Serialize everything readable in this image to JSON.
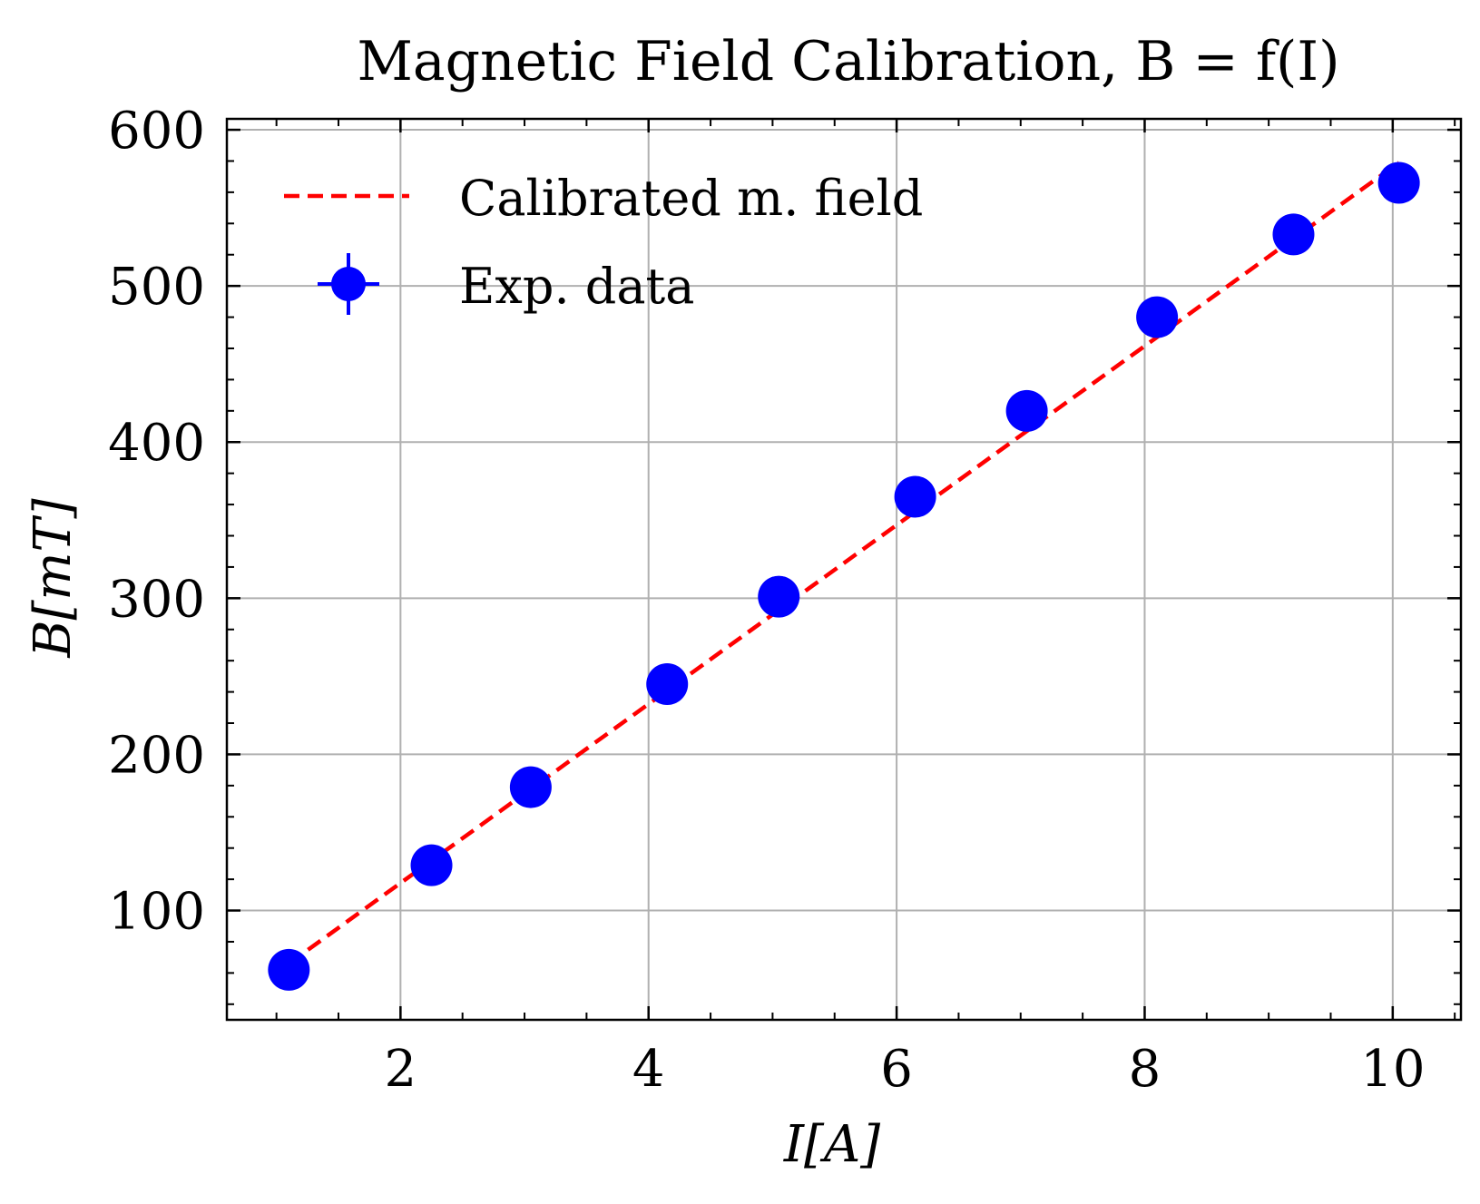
{
  "chart_data": {
    "type": "scatter",
    "title": "Magnetic Field Calibration, B = f(I)",
    "xlabel": "I[A]",
    "ylabel": "B[mT]",
    "xlim": [
      0.6,
      10.55
    ],
    "ylim": [
      30,
      607
    ],
    "xticks": [
      2,
      4,
      6,
      8,
      10
    ],
    "yticks": [
      100,
      200,
      300,
      400,
      500,
      600
    ],
    "x_minor_step": 0.5,
    "y_minor_step": 20,
    "grid": true,
    "legend_position": "top-left",
    "series": [
      {
        "name": "Calibrated m. field",
        "kind": "line",
        "style": "dashed",
        "color": "#ff0000",
        "x": [
          1.1,
          10.05
        ],
        "y": [
          66,
          579
        ]
      },
      {
        "name": "Exp. data",
        "kind": "scatter",
        "marker": "circle",
        "errorbars": true,
        "color": "#0000ff",
        "x": [
          1.1,
          2.25,
          3.05,
          4.15,
          5.05,
          6.15,
          7.05,
          8.1,
          9.2,
          10.05
        ],
        "y": [
          62,
          129,
          179,
          245,
          301,
          365,
          420,
          480,
          533,
          566
        ]
      }
    ]
  }
}
